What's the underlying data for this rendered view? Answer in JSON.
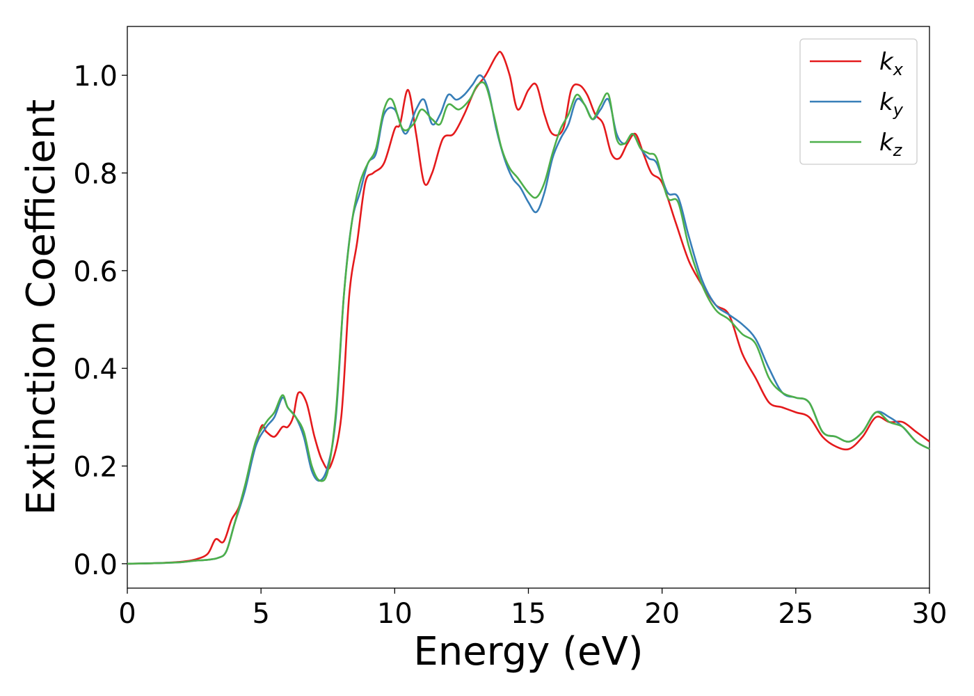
{
  "chart_data": {
    "type": "line",
    "xlabel": "Energy (eV)",
    "ylabel": "Extinction Coefficient",
    "xlim": [
      0,
      30
    ],
    "ylim": [
      -0.05,
      1.1
    ],
    "xticks": [
      0,
      5,
      10,
      15,
      20,
      25,
      30
    ],
    "xtick_labels": [
      "0",
      "5",
      "10",
      "15",
      "20",
      "25",
      "30"
    ],
    "yticks": [
      0.0,
      0.2,
      0.4,
      0.6,
      0.8,
      1.0
    ],
    "ytick_labels": [
      "0.0",
      "0.2",
      "0.4",
      "0.6",
      "0.8",
      "1.0"
    ],
    "grid": false,
    "legend_position": "top-right",
    "series": [
      {
        "name": "k",
        "subscript": "x",
        "color": "#e41a1c",
        "x": [
          0,
          1,
          2,
          2.5,
          3.0,
          3.3,
          3.6,
          3.9,
          4.2,
          4.6,
          5.0,
          5.2,
          5.5,
          5.8,
          6.0,
          6.2,
          6.4,
          6.7,
          7.0,
          7.3,
          7.6,
          8.0,
          8.3,
          8.6,
          8.9,
          9.2,
          9.6,
          10.0,
          10.2,
          10.5,
          10.8,
          11.1,
          11.4,
          11.8,
          12.2,
          12.6,
          13.0,
          13.4,
          13.8,
          14.0,
          14.3,
          14.6,
          15.0,
          15.3,
          15.6,
          15.9,
          16.3,
          16.6,
          16.9,
          17.2,
          17.5,
          17.8,
          18.1,
          18.4,
          18.7,
          19.0,
          19.3,
          19.6,
          20.0,
          20.5,
          21.0,
          21.5,
          22.0,
          22.5,
          23.0,
          23.5,
          24.0,
          24.5,
          25.0,
          25.5,
          26.0,
          26.5,
          27.0,
          27.5,
          28.0,
          28.5,
          29.0,
          29.5,
          30.0
        ],
        "y": [
          0.0,
          0.001,
          0.004,
          0.008,
          0.02,
          0.05,
          0.045,
          0.09,
          0.12,
          0.2,
          0.28,
          0.27,
          0.26,
          0.28,
          0.28,
          0.3,
          0.35,
          0.33,
          0.26,
          0.21,
          0.2,
          0.3,
          0.55,
          0.66,
          0.78,
          0.8,
          0.82,
          0.89,
          0.9,
          0.97,
          0.88,
          0.78,
          0.8,
          0.87,
          0.88,
          0.92,
          0.97,
          1.0,
          1.04,
          1.045,
          1.0,
          0.93,
          0.97,
          0.98,
          0.92,
          0.88,
          0.89,
          0.97,
          0.98,
          0.96,
          0.92,
          0.9,
          0.84,
          0.83,
          0.86,
          0.88,
          0.84,
          0.8,
          0.78,
          0.7,
          0.62,
          0.57,
          0.53,
          0.51,
          0.43,
          0.38,
          0.33,
          0.32,
          0.31,
          0.3,
          0.26,
          0.24,
          0.235,
          0.26,
          0.3,
          0.29,
          0.29,
          0.27,
          0.25
        ]
      },
      {
        "name": "k",
        "subscript": "y",
        "color": "#377eb8",
        "x": [
          0,
          1,
          2,
          2.5,
          3.0,
          3.4,
          3.7,
          4.0,
          4.4,
          4.8,
          5.2,
          5.5,
          5.8,
          6.0,
          6.3,
          6.6,
          6.9,
          7.2,
          7.5,
          7.8,
          8.1,
          8.4,
          8.7,
          9.0,
          9.3,
          9.6,
          10.0,
          10.4,
          10.8,
          11.1,
          11.4,
          11.7,
          12.0,
          12.3,
          12.6,
          12.9,
          13.2,
          13.5,
          13.8,
          14.1,
          14.4,
          14.7,
          15.0,
          15.3,
          15.6,
          15.9,
          16.2,
          16.5,
          16.8,
          17.1,
          17.4,
          17.7,
          18.0,
          18.3,
          18.6,
          18.9,
          19.2,
          19.5,
          19.8,
          20.2,
          20.6,
          21.0,
          21.5,
          22.0,
          22.5,
          23.0,
          23.5,
          24.0,
          24.5,
          25.0,
          25.5,
          26.0,
          26.5,
          27.0,
          27.5,
          28.0,
          28.5,
          29.0,
          29.5,
          30.0
        ],
        "y": [
          0.0,
          0.001,
          0.003,
          0.006,
          0.008,
          0.012,
          0.025,
          0.08,
          0.15,
          0.24,
          0.28,
          0.3,
          0.34,
          0.32,
          0.3,
          0.26,
          0.19,
          0.17,
          0.2,
          0.3,
          0.55,
          0.7,
          0.76,
          0.82,
          0.84,
          0.92,
          0.93,
          0.88,
          0.93,
          0.95,
          0.9,
          0.92,
          0.96,
          0.95,
          0.96,
          0.98,
          1.0,
          0.97,
          0.89,
          0.83,
          0.79,
          0.77,
          0.74,
          0.72,
          0.76,
          0.83,
          0.87,
          0.9,
          0.95,
          0.94,
          0.91,
          0.93,
          0.95,
          0.88,
          0.86,
          0.88,
          0.85,
          0.83,
          0.82,
          0.76,
          0.75,
          0.67,
          0.58,
          0.53,
          0.51,
          0.49,
          0.46,
          0.4,
          0.35,
          0.34,
          0.33,
          0.27,
          0.26,
          0.25,
          0.27,
          0.31,
          0.3,
          0.28,
          0.25,
          0.235
        ]
      },
      {
        "name": "k",
        "subscript": "z",
        "color": "#4daf4a",
        "x": [
          0,
          1,
          2,
          2.5,
          3.0,
          3.4,
          3.7,
          4.0,
          4.4,
          4.8,
          5.2,
          5.5,
          5.8,
          6.0,
          6.3,
          6.6,
          6.9,
          7.2,
          7.5,
          7.8,
          8.1,
          8.4,
          8.7,
          9.0,
          9.3,
          9.6,
          9.9,
          10.3,
          10.7,
          11.0,
          11.4,
          11.7,
          12.0,
          12.4,
          12.8,
          13.1,
          13.4,
          13.7,
          14.0,
          14.3,
          14.6,
          15.0,
          15.3,
          15.6,
          15.9,
          16.2,
          16.5,
          16.8,
          17.1,
          17.4,
          17.7,
          18.0,
          18.3,
          18.6,
          18.9,
          19.2,
          19.5,
          19.8,
          20.2,
          20.6,
          21.0,
          21.5,
          22.0,
          22.5,
          23.0,
          23.5,
          24.0,
          24.5,
          25.0,
          25.5,
          26.0,
          26.5,
          27.0,
          27.5,
          28.0,
          28.5,
          29.0,
          29.5,
          30.0
        ],
        "y": [
          0.0,
          0.001,
          0.003,
          0.006,
          0.008,
          0.012,
          0.025,
          0.08,
          0.16,
          0.25,
          0.29,
          0.31,
          0.345,
          0.32,
          0.3,
          0.27,
          0.2,
          0.17,
          0.19,
          0.31,
          0.55,
          0.7,
          0.78,
          0.82,
          0.85,
          0.93,
          0.95,
          0.89,
          0.9,
          0.93,
          0.91,
          0.9,
          0.94,
          0.93,
          0.95,
          0.98,
          0.98,
          0.92,
          0.85,
          0.81,
          0.79,
          0.76,
          0.75,
          0.78,
          0.84,
          0.89,
          0.92,
          0.96,
          0.94,
          0.91,
          0.94,
          0.96,
          0.87,
          0.86,
          0.88,
          0.85,
          0.84,
          0.83,
          0.75,
          0.74,
          0.65,
          0.57,
          0.52,
          0.5,
          0.47,
          0.45,
          0.38,
          0.35,
          0.34,
          0.33,
          0.27,
          0.26,
          0.25,
          0.27,
          0.31,
          0.29,
          0.28,
          0.25,
          0.235
        ]
      }
    ]
  }
}
